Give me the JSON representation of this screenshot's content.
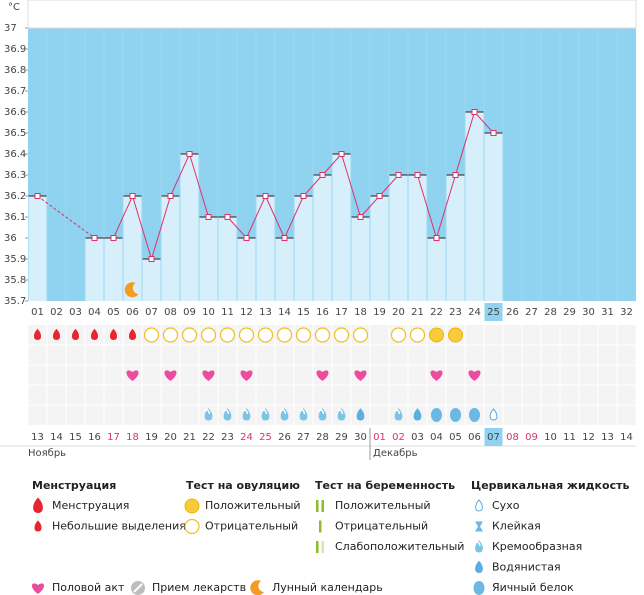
{
  "chart_data": {
    "type": "line",
    "unit": "°C",
    "categories": [
      "01",
      "02",
      "03",
      "04",
      "05",
      "06",
      "07",
      "08",
      "09",
      "10",
      "11",
      "12",
      "13",
      "14",
      "15",
      "16",
      "17",
      "18",
      "19",
      "20",
      "21",
      "22",
      "23",
      "24",
      "25",
      "26",
      "27",
      "28",
      "29",
      "30",
      "31",
      "32"
    ],
    "values": [
      36.2,
      null,
      null,
      36.0,
      36.0,
      36.2,
      35.9,
      36.2,
      36.4,
      36.1,
      36.1,
      36.0,
      36.2,
      36.0,
      36.2,
      36.3,
      36.4,
      36.1,
      36.2,
      36.3,
      36.3,
      36.0,
      36.3,
      36.6,
      36.5,
      null,
      null,
      null,
      null,
      null,
      null,
      null
    ],
    "ylim": [
      35.7,
      37
    ],
    "yticks": [
      35.7,
      35.8,
      35.9,
      36,
      36.1,
      36.2,
      36.3,
      36.4,
      36.5,
      36.6,
      36.7,
      36.8,
      36.9,
      37
    ],
    "color": "#e0306a",
    "background": "#8fd3f0",
    "bar_color": "#d6effb",
    "highlight_day": "25",
    "moon_day": "06"
  },
  "symbols": {
    "menstruation": [
      "light",
      "light",
      "light",
      "light",
      "light",
      "light",
      null,
      null,
      null,
      null,
      null,
      null,
      null,
      null,
      null,
      null,
      null,
      null,
      null,
      null,
      null,
      null,
      null,
      null,
      null,
      null,
      null,
      null,
      null,
      null,
      null,
      null
    ],
    "ovulation": [
      null,
      null,
      null,
      null,
      null,
      null,
      "negative",
      "negative",
      "negative",
      "negative",
      "negative",
      "negative",
      "negative",
      "negative",
      "negative",
      "negative",
      "negative",
      "negative",
      null,
      "negative",
      "negative",
      "positive",
      "positive",
      null,
      null,
      null,
      null,
      null,
      null,
      null,
      null,
      null
    ],
    "intercourse": [
      null,
      null,
      null,
      null,
      null,
      true,
      null,
      true,
      null,
      true,
      null,
      true,
      null,
      null,
      null,
      true,
      null,
      true,
      null,
      null,
      null,
      true,
      null,
      true,
      null,
      null,
      null,
      null,
      null,
      null,
      null,
      null
    ],
    "cervical": [
      null,
      null,
      null,
      null,
      null,
      null,
      null,
      null,
      null,
      "creamy",
      "creamy",
      "creamy",
      "creamy",
      "creamy",
      "creamy",
      "creamy",
      "creamy",
      "watery",
      null,
      "creamy",
      "watery",
      "eggwhite",
      "eggwhite",
      "eggwhite",
      "dry",
      null,
      null,
      null,
      null,
      null,
      null,
      null
    ]
  },
  "calendar": {
    "dates": [
      "13",
      "14",
      "15",
      "16",
      "17",
      "18",
      "19",
      "20",
      "21",
      "22",
      "23",
      "24",
      "25",
      "26",
      "27",
      "28",
      "29",
      "30",
      "01",
      "02",
      "03",
      "04",
      "05",
      "06",
      "07",
      "08",
      "09",
      "10",
      "11",
      "12",
      "13",
      "14"
    ],
    "weekend": [
      false,
      false,
      false,
      false,
      true,
      true,
      false,
      false,
      false,
      false,
      false,
      true,
      true,
      false,
      false,
      false,
      false,
      false,
      true,
      true,
      false,
      false,
      false,
      false,
      false,
      true,
      true,
      false,
      false,
      false,
      false,
      false
    ],
    "months": [
      "Ноябрь",
      "Декабрь"
    ]
  },
  "legend": [
    {
      "title": "Менструация",
      "items": [
        {
          "label": "Менструация",
          "icon": "heavy"
        },
        {
          "label": "Небольшие выделения",
          "icon": "light"
        }
      ]
    },
    {
      "title": "Тест на овуляцию",
      "items": [
        {
          "label": "Положительный",
          "icon": "positive"
        },
        {
          "label": "Отрицательный",
          "icon": "negative"
        }
      ]
    },
    {
      "title": "Тест на беременность",
      "items": [
        {
          "label": "Положительный",
          "icon": "preg-pos"
        },
        {
          "label": "Отрицательный",
          "icon": "preg-neg"
        },
        {
          "label": "Слабоположительный",
          "icon": "preg-weak"
        }
      ]
    },
    {
      "title": "Цервикальная жидкость",
      "items": [
        {
          "label": "Сухо",
          "icon": "dry"
        },
        {
          "label": "Клейкая",
          "icon": "sticky"
        },
        {
          "label": "Кремообразная",
          "icon": "creamy"
        },
        {
          "label": "Водянистая",
          "icon": "watery"
        },
        {
          "label": "Яичный белок",
          "icon": "eggwhite"
        }
      ]
    }
  ],
  "legend_extra": [
    {
      "label": "Половой акт",
      "icon": "heart"
    },
    {
      "label": "Прием лекарств",
      "icon": "pill"
    },
    {
      "label": "Лунный календарь",
      "icon": "moon"
    }
  ]
}
